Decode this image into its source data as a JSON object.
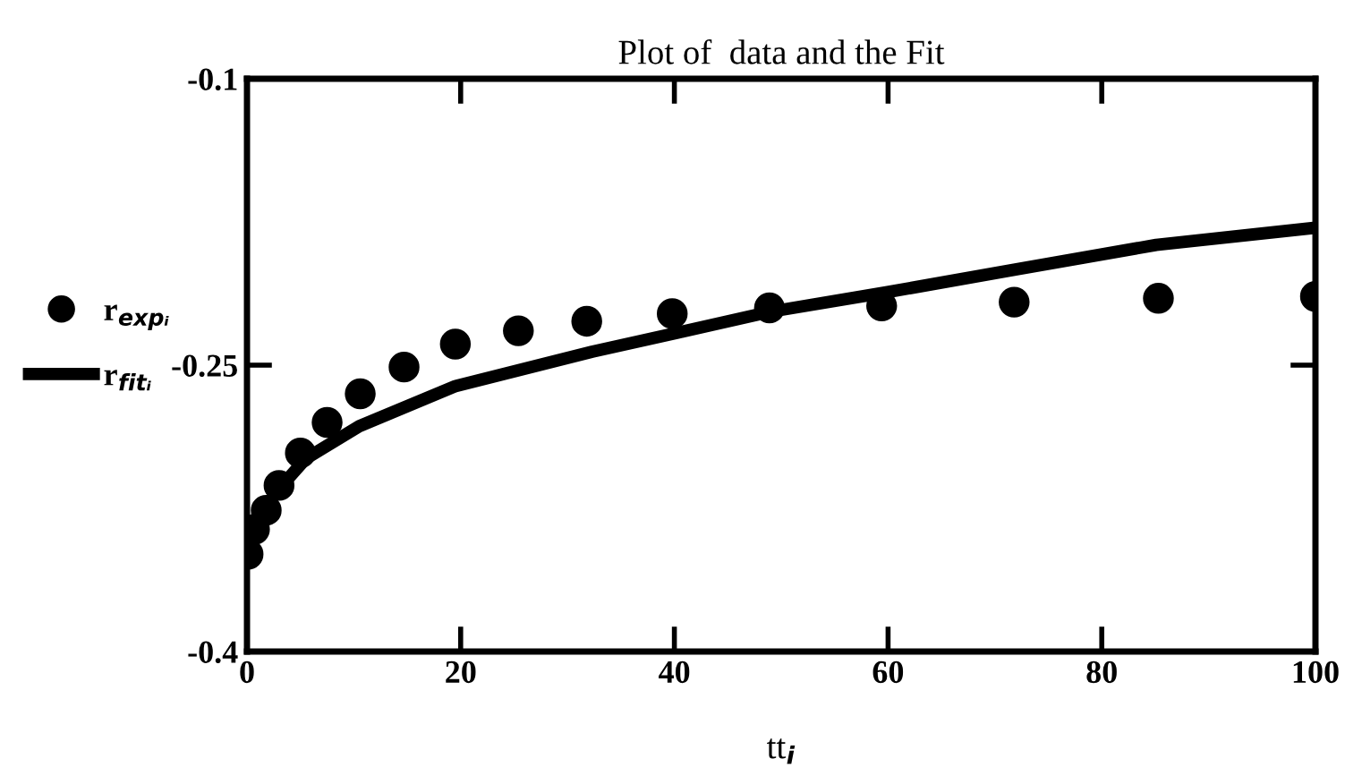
{
  "chart_data": {
    "type": "scatter",
    "title": "Plot of  data and the Fit",
    "xlabel": "tt$_{i}$",
    "xlim": [
      0,
      100
    ],
    "xticks": [
      0,
      20,
      40,
      60,
      80,
      100
    ],
    "ylim": [
      -0.4,
      -0.1
    ],
    "yticks": [
      -0.4,
      -0.25,
      -0.1
    ],
    "grid": false,
    "legend": "left",
    "series": [
      {
        "name": "r$_{expᵢ}$",
        "marker": "circle",
        "color": "#000000",
        "x": [
          0.1,
          0.7,
          1.8,
          3.0,
          5.0,
          7.5,
          10.6,
          14.7,
          19.5,
          25.4,
          31.8,
          39.8,
          48.9,
          59.4,
          71.8,
          85.3,
          100
        ],
        "values": [
          -0.349,
          -0.336,
          -0.326,
          -0.313,
          -0.296,
          -0.28,
          -0.265,
          -0.251,
          -0.239,
          -0.232,
          -0.227,
          -0.223,
          -0.22,
          -0.219,
          -0.217,
          -0.215,
          -0.214
        ]
      },
      {
        "name": "r$_{fitᵢ}$",
        "type": "line",
        "color": "#000000",
        "line_style": "solid",
        "x": [
          0,
          0.8,
          1.5,
          2.8,
          5.5,
          10.5,
          19.5,
          32.3,
          40.3,
          49,
          59.7,
          71.8,
          85.1,
          100
        ],
        "values": [
          -0.352,
          -0.334,
          -0.327,
          -0.316,
          -0.299,
          -0.282,
          -0.261,
          -0.243,
          -0.233,
          -0.222,
          -0.212,
          -0.2,
          -0.187,
          -0.178
        ]
      }
    ]
  }
}
